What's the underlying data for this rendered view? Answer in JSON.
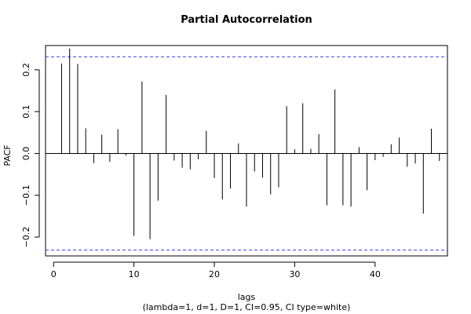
{
  "chart_data": {
    "type": "bar",
    "title": "Partial Autocorrelation",
    "xlabel": "lags",
    "subtitle": "(lambda=1, d=1, D=1, CI=0.95, CI type=white)",
    "ylabel": "PACF",
    "xlim": [
      -1,
      49
    ],
    "ylim": [
      -0.245,
      0.258
    ],
    "x_ticks": [
      0,
      10,
      20,
      30,
      40
    ],
    "y_ticks": [
      -0.2,
      -0.1,
      0.0,
      0.1,
      0.2
    ],
    "y_tick_labels": [
      "−0.2",
      "−0.1",
      "0.0",
      "0.1",
      "0.2"
    ],
    "ci_upper": 0.231,
    "ci_lower": -0.231,
    "ci_color": "#4444dd",
    "lags": [
      1,
      2,
      3,
      4,
      5,
      6,
      7,
      8,
      9,
      10,
      11,
      12,
      13,
      14,
      15,
      16,
      17,
      18,
      19,
      20,
      21,
      22,
      23,
      24,
      25,
      26,
      27,
      28,
      29,
      30,
      31,
      32,
      33,
      34,
      35,
      36,
      37,
      38,
      39,
      40,
      41,
      42,
      43,
      44,
      45,
      46,
      47,
      48
    ],
    "values": [
      0.215,
      0.251,
      0.214,
      0.06,
      -0.023,
      0.045,
      -0.02,
      0.058,
      -0.005,
      -0.197,
      0.172,
      -0.205,
      -0.113,
      0.14,
      -0.017,
      -0.034,
      -0.038,
      -0.014,
      0.054,
      -0.059,
      -0.11,
      -0.084,
      0.024,
      -0.127,
      -0.043,
      -0.058,
      -0.098,
      -0.081,
      0.113,
      0.01,
      0.12,
      0.011,
      0.046,
      -0.124,
      0.153,
      -0.124,
      -0.127,
      0.015,
      -0.088,
      -0.016,
      -0.008,
      0.022,
      0.038,
      -0.032,
      -0.024,
      -0.144,
      0.059,
      -0.018
    ]
  }
}
